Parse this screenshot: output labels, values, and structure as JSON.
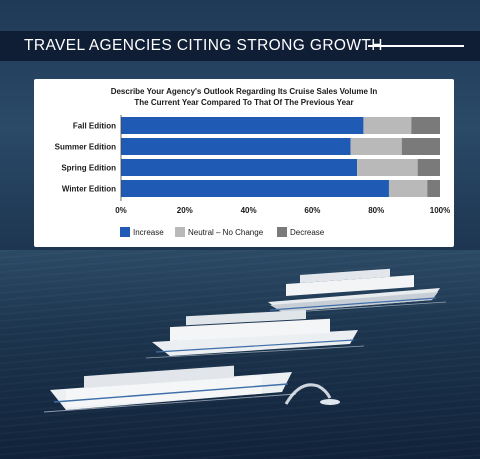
{
  "header": {
    "title": "TRAVEL AGENCIES CITING STRONG GROWTH"
  },
  "colors": {
    "increase": "#1f5bb5",
    "neutral": "#b9b9b9",
    "decrease": "#7a7a7a",
    "header_band": "#0f1e35"
  },
  "chart_data": {
    "type": "bar",
    "orientation": "horizontal",
    "stacked": true,
    "title_lines": [
      "Describe Your Agency's Outlook Regarding Its Cruise Sales Volume In",
      "The Current Year Compared To That Of The Previous Year"
    ],
    "categories": [
      "Fall Edition",
      "Summer Edition",
      "Spring Edition",
      "Winter Edition"
    ],
    "series": [
      {
        "name": "Increase",
        "values": [
          76,
          72,
          74,
          84
        ]
      },
      {
        "name": "Neutral – No Change",
        "values": [
          15,
          16,
          19,
          12
        ]
      },
      {
        "name": "Decrease",
        "values": [
          9,
          12,
          7,
          4
        ]
      }
    ],
    "xlim": [
      0,
      100
    ],
    "xticks": [
      "0%",
      "20%",
      "40%",
      "60%",
      "80%",
      "100%"
    ],
    "grid": false,
    "legend_position": "bottom"
  }
}
